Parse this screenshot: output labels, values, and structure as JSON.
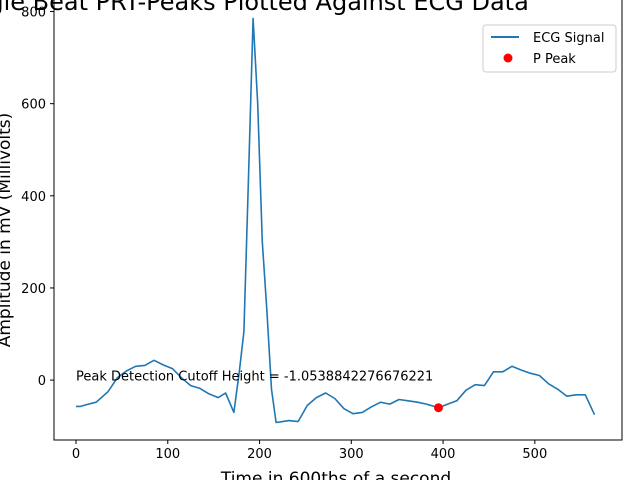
{
  "chart_data": {
    "type": "line",
    "title": "Single Beat PRT-Peaks Plotted Against ECG Data",
    "xlabel": "Time in 600ths of a second",
    "ylabel": "Amplitude in mV (Millivolts)",
    "xlim": [
      -24,
      595
    ],
    "ylim": [
      -130,
      825
    ],
    "xticks": [
      0,
      100,
      200,
      300,
      400,
      500
    ],
    "yticks": [
      0,
      200,
      400,
      600,
      800
    ],
    "grid": false,
    "legend_position": "upper right",
    "series": [
      {
        "name": "ECG Signal",
        "type": "line",
        "color": "#1f77b4",
        "x": [
          0,
          5,
          12,
          22,
          35,
          45,
          55,
          65,
          75,
          85,
          95,
          105,
          115,
          125,
          135,
          145,
          155,
          163,
          172,
          178,
          183,
          188,
          193,
          198,
          203,
          208,
          213,
          218,
          225,
          232,
          242,
          252,
          262,
          272,
          282,
          292,
          302,
          312,
          322,
          332,
          342,
          352,
          362,
          372,
          382,
          395,
          405,
          415,
          425,
          435,
          445,
          455,
          465,
          475,
          485,
          495,
          505,
          515,
          525,
          535,
          545,
          555,
          565
        ],
        "y": [
          -57,
          -57,
          -53,
          -48,
          -25,
          5,
          20,
          30,
          32,
          43,
          33,
          25,
          5,
          -12,
          -18,
          -30,
          -38,
          -28,
          -70,
          20,
          105,
          440,
          785,
          600,
          300,
          150,
          -20,
          -92,
          -90,
          -88,
          -90,
          -55,
          -38,
          -28,
          -40,
          -62,
          -73,
          -70,
          -58,
          -48,
          -52,
          -42,
          -45,
          -48,
          -52,
          -60,
          -52,
          -45,
          -22,
          -10,
          -12,
          18,
          18,
          30,
          22,
          15,
          10,
          -8,
          -20,
          -35,
          -32,
          -32,
          -75
        ]
      },
      {
        "name": "P Peak",
        "type": "scatter",
        "color": "#ff0000",
        "x": [
          395
        ],
        "y": [
          -60
        ]
      }
    ],
    "annotations": [
      {
        "text": "Peak Detection Cutoff Height = -1.0538842276676221",
        "x": 0,
        "y": -1.05
      }
    ]
  }
}
